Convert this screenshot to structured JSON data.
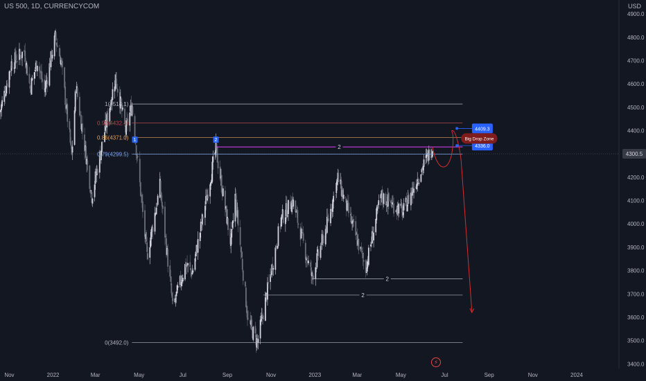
{
  "header": {
    "symbol": "US 500, 1D, CURRENCYCOM",
    "currency": "USD"
  },
  "icons": {
    "flash": "lightning-icon"
  },
  "chart_data": {
    "type": "candlestick",
    "title": "US 500, 1D, CURRENCYCOM",
    "ylim": [
      3380,
      4960
    ],
    "y_ticks": [
      3400,
      3500,
      3600,
      3700,
      3800,
      3900,
      4000,
      4100,
      4200,
      4300,
      4400,
      4500,
      4600,
      4700,
      4800,
      4900
    ],
    "y_tick_labels": [
      "3400.0",
      "3500.0",
      "3600.0",
      "3700.0",
      "3800.0",
      "3900.0",
      "4000.0",
      "4100.0",
      "4200.0",
      "4300.0",
      "4400.0",
      "4500.0",
      "4600.0",
      "4700.0",
      "4800.0",
      "4900.0"
    ],
    "x_range": [
      "2021-10-19",
      "2024-02-29"
    ],
    "x_ticks": [
      {
        "date": "2021-11-01",
        "label": "Nov"
      },
      {
        "date": "2022-01-01",
        "label": "2022"
      },
      {
        "date": "2022-03-01",
        "label": "Mar"
      },
      {
        "date": "2022-05-01",
        "label": "May"
      },
      {
        "date": "2022-07-01",
        "label": "Jul"
      },
      {
        "date": "2022-09-01",
        "label": "Sep"
      },
      {
        "date": "2022-11-01",
        "label": "Nov"
      },
      {
        "date": "2023-01-01",
        "label": "2023"
      },
      {
        "date": "2023-03-01",
        "label": "Mar"
      },
      {
        "date": "2023-05-01",
        "label": "May"
      },
      {
        "date": "2023-07-01",
        "label": "Jul"
      },
      {
        "date": "2023-09-01",
        "label": "Sep"
      },
      {
        "date": "2023-11-01",
        "label": "Nov"
      },
      {
        "date": "2024-01-01",
        "label": "2024"
      }
    ],
    "price_path": [
      [
        "2021-10-19",
        4480
      ],
      [
        "2021-11-04",
        4690
      ],
      [
        "2021-11-22",
        4740
      ],
      [
        "2021-11-30",
        4580
      ],
      [
        "2021-12-10",
        4700
      ],
      [
        "2021-12-20",
        4570
      ],
      [
        "2022-01-04",
        4800
      ],
      [
        "2022-01-12",
        4700
      ],
      [
        "2022-01-27",
        4290
      ],
      [
        "2022-02-02",
        4590
      ],
      [
        "2022-02-24",
        4120
      ],
      [
        "2022-03-29",
        4630
      ],
      [
        "2022-04-12",
        4400
      ],
      [
        "2022-04-21",
        4510
      ],
      [
        "2022-05-12",
        3860
      ],
      [
        "2022-05-30",
        4160
      ],
      [
        "2022-06-17",
        3640
      ],
      [
        "2022-07-05",
        3830
      ],
      [
        "2022-07-14",
        3790
      ],
      [
        "2022-08-16",
        4320
      ],
      [
        "2022-09-06",
        3910
      ],
      [
        "2022-09-12",
        4120
      ],
      [
        "2022-09-30",
        3580
      ],
      [
        "2022-10-13",
        3492
      ],
      [
        "2022-11-15",
        4020
      ],
      [
        "2022-12-01",
        4100
      ],
      [
        "2022-12-28",
        3770
      ],
      [
        "2023-01-20",
        4020
      ],
      [
        "2023-02-02",
        4195
      ],
      [
        "2023-03-13",
        3810
      ],
      [
        "2023-04-03",
        4120
      ],
      [
        "2023-05-04",
        4050
      ],
      [
        "2023-05-26",
        4210
      ],
      [
        "2023-06-14",
        4330
      ]
    ],
    "fib_levels": [
      {
        "label": "1(4514.1)",
        "value": 4514.1,
        "color": "#b2b5be"
      },
      {
        "label": "0.92(4432.4)",
        "value": 4432.4,
        "color": "#b54a4a"
      },
      {
        "label": "0.86(4371.0)",
        "value": 4371.0,
        "color": "#e8a35c"
      },
      {
        "label": "0.79(4299.5)",
        "value": 4299.5,
        "color": "#7fa7e8"
      },
      {
        "label": "0(3492.0)",
        "value": 3492.0,
        "color": "#b2b5be"
      }
    ],
    "resistance_line": {
      "value": 4330,
      "label": "2",
      "marker_left": "2",
      "marker_far": "1"
    },
    "support_lines": [
      {
        "value": 3765,
        "label": "2"
      },
      {
        "value": 3695,
        "label": "2"
      }
    ],
    "projection": [
      [
        "2023-06-14",
        4330
      ],
      [
        "2023-06-30",
        4240
      ],
      [
        "2023-07-12",
        4400
      ],
      [
        "2023-07-22",
        4330
      ],
      [
        "2023-08-08",
        3620
      ]
    ],
    "price_badges": [
      {
        "value": 4409.3,
        "label": "4409.3"
      },
      {
        "value": 4336.0,
        "label": "4336.0"
      }
    ],
    "current_price": {
      "value": 4300.5,
      "label": "4300.5"
    },
    "annotation": "Big Drop Zone"
  }
}
